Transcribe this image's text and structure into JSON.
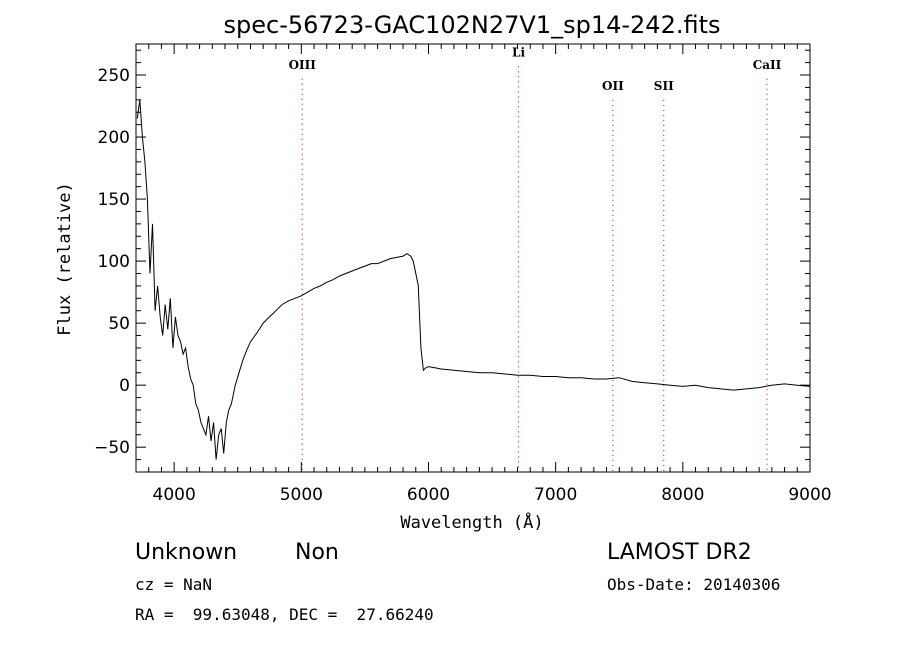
{
  "chart_data": {
    "type": "line",
    "title": "spec-56723-GAC102N27V1_sp14-242.fits",
    "xlabel": "Wavelength (Å)",
    "ylabel": "Flux (relative)",
    "xlim": [
      3700,
      9000
    ],
    "ylim": [
      -70,
      275
    ],
    "xticks": [
      4000,
      5000,
      6000,
      7000,
      8000,
      9000
    ],
    "yticks": [
      -50,
      0,
      50,
      100,
      150,
      200,
      250
    ],
    "grid": false,
    "color": "#000000",
    "lines": [
      {
        "label": "OIII",
        "x": 5007,
        "label_y": 255
      },
      {
        "label": "Li",
        "x": 6708,
        "label_y": 265
      },
      {
        "label": "OII",
        "x": 7450,
        "label_y": 238
      },
      {
        "label": "SII",
        "x": 7850,
        "label_y": 238
      },
      {
        "label": "CaII",
        "x": 8662,
        "label_y": 255
      }
    ],
    "line_color": "#cc0000",
    "series": [
      {
        "x": [
          3710,
          3730,
          3750,
          3770,
          3790,
          3810,
          3830,
          3850,
          3870,
          3890,
          3910,
          3930,
          3950,
          3970,
          3990,
          4010,
          4030,
          4050,
          4070,
          4090,
          4110,
          4130,
          4150,
          4170,
          4190,
          4210,
          4230,
          4250,
          4270,
          4290,
          4310,
          4330,
          4350,
          4370,
          4390,
          4410,
          4430,
          4450,
          4480,
          4510,
          4540,
          4570,
          4600,
          4650,
          4700,
          4750,
          4800,
          4850,
          4900,
          4950,
          5000,
          5050,
          5100,
          5150,
          5200,
          5250,
          5300,
          5350,
          5400,
          5450,
          5500,
          5550,
          5600,
          5650,
          5700,
          5750,
          5800,
          5830,
          5860,
          5880,
          5900,
          5920,
          5940,
          5960,
          5980,
          6000,
          6050,
          6100,
          6200,
          6300,
          6400,
          6500,
          6600,
          6700,
          6800,
          6900,
          7000,
          7100,
          7200,
          7300,
          7400,
          7500,
          7600,
          7700,
          7800,
          7900,
          8000,
          8100,
          8200,
          8300,
          8400,
          8500,
          8600,
          8700,
          8800,
          8900,
          9000
        ],
        "y": [
          215,
          230,
          200,
          180,
          150,
          90,
          130,
          60,
          80,
          55,
          40,
          65,
          45,
          70,
          30,
          55,
          40,
          35,
          25,
          30,
          15,
          5,
          0,
          -15,
          -20,
          -30,
          -35,
          -40,
          -25,
          -45,
          -30,
          -60,
          -40,
          -35,
          -55,
          -30,
          -20,
          -15,
          0,
          10,
          20,
          28,
          35,
          42,
          50,
          55,
          60,
          65,
          68,
          70,
          72,
          75,
          78,
          80,
          83,
          85,
          88,
          90,
          92,
          94,
          96,
          98,
          98,
          100,
          102,
          103,
          104,
          106,
          104,
          100,
          90,
          80,
          30,
          12,
          14,
          15,
          14,
          13,
          12,
          11,
          10,
          10,
          9,
          8,
          8,
          7,
          7,
          6,
          6,
          5,
          5,
          6,
          3,
          2,
          1,
          0,
          -1,
          0,
          -2,
          -3,
          -4,
          -3,
          -2,
          0,
          1,
          0,
          -1
        ]
      }
    ]
  },
  "footer": {
    "object_type": "Unknown",
    "subclass": "Non",
    "cz": "cz = NaN",
    "coords": "RA =  99.63048, DEC =  27.66240",
    "survey": "LAMOST DR2",
    "obs_date": "Obs-Date: 20140306"
  }
}
